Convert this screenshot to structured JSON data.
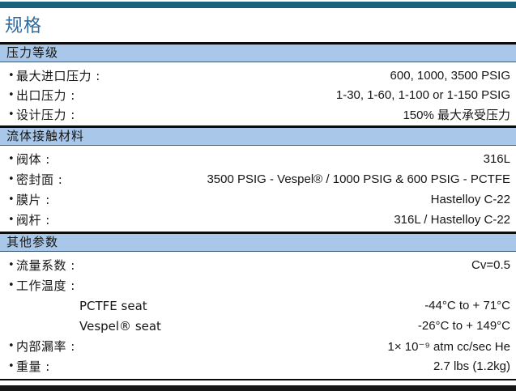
{
  "page": {
    "title": "规格"
  },
  "colors": {
    "top_bar": "#19647a",
    "title_blue": "#2d6ca3",
    "section_band_bg": "#a9c7e8",
    "rule_black": "#0c0c0c",
    "text": "#161616"
  },
  "sections": [
    {
      "header": "压力等级",
      "rows": [
        {
          "label": "最大进口压力 :",
          "value": "600, 1000, 3500 PSIG",
          "bullet": true,
          "indent": false
        },
        {
          "label": "出口压力 :",
          "value": "1-30, 1-60, 1-100 or 1-150 PSIG",
          "bullet": true,
          "indent": false
        },
        {
          "label": "设计压力 :",
          "value": "150% 最大承受压力",
          "bullet": true,
          "indent": false
        }
      ]
    },
    {
      "header": "流体接触材料",
      "rows": [
        {
          "label": "阀体 :",
          "value": "316L",
          "bullet": true,
          "indent": false
        },
        {
          "label": "密封面 :",
          "value": "3500 PSIG - Vespel® / 1000 PSIG & 600 PSIG - PCTFE",
          "bullet": true,
          "indent": false
        },
        {
          "label": "膜片 :",
          "value": "Hastelloy C-22",
          "bullet": true,
          "indent": false
        },
        {
          "label": "阀杆 :",
          "value": "316L / Hastelloy C-22",
          "bullet": true,
          "indent": false
        }
      ]
    },
    {
      "header": "其他参数",
      "rows": [
        {
          "label": "流量系数 :",
          "value": "Cv=0.5",
          "bullet": true,
          "indent": false
        },
        {
          "label": "工作温度 :",
          "value": "",
          "bullet": true,
          "indent": false
        },
        {
          "label": "PCTFE seat",
          "value": "-44°C to + 71°C",
          "bullet": false,
          "indent": true,
          "latin": true
        },
        {
          "label": "Vespel® seat",
          "value": "-26°C to + 149°C",
          "bullet": false,
          "indent": true,
          "latin": true
        },
        {
          "label": "内部漏率 :",
          "value": "1× 10⁻⁹ atm cc/sec He",
          "bullet": true,
          "indent": false
        },
        {
          "label": "重量 :",
          "value": "2.7 lbs (1.2kg)",
          "bullet": true,
          "indent": false
        }
      ]
    }
  ]
}
